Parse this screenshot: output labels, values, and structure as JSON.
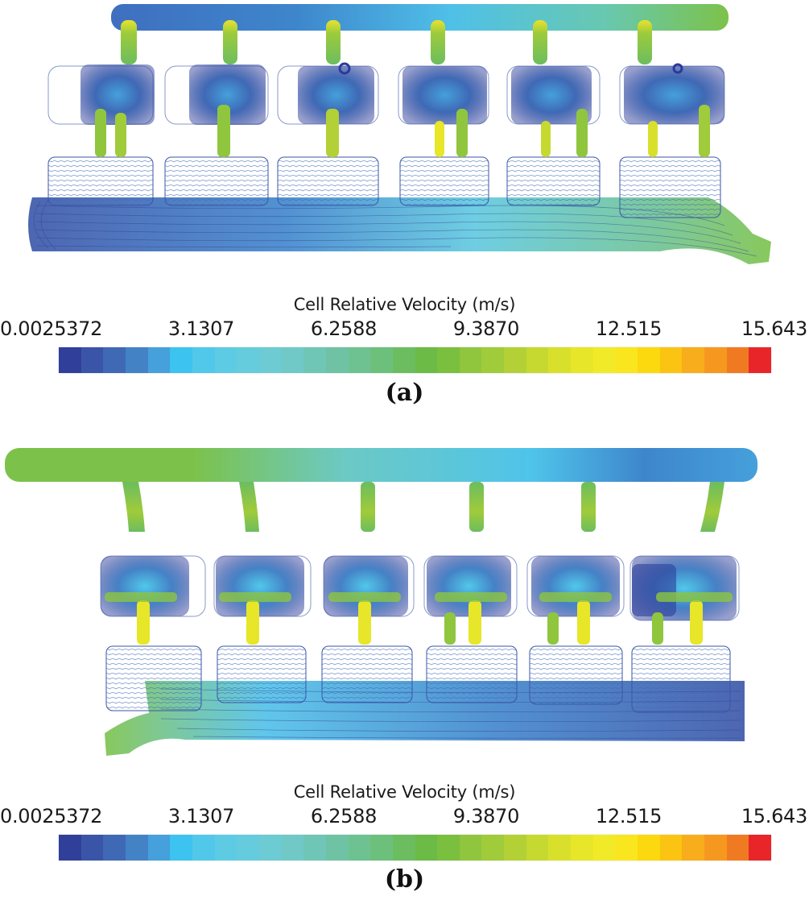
{
  "figure": {
    "panels": [
      {
        "id": "a",
        "caption": "(a)",
        "colorbar": {
          "title": "Cell Relative Velocity (m/s)",
          "tick_labels": [
            "0.0025372",
            "3.1307",
            "6.2588",
            "9.3870",
            "12.515",
            "15.643"
          ]
        }
      },
      {
        "id": "b",
        "caption": "(b)",
        "colorbar": {
          "title": "Cell Relative Velocity (m/s)",
          "tick_labels": [
            "0.0025372",
            "3.1307",
            "6.2588",
            "9.3870",
            "12.515",
            "15.643"
          ]
        }
      }
    ],
    "colormap": [
      "#2f3f9a",
      "#3a55a8",
      "#3f69b5",
      "#4482c6",
      "#45a0db",
      "#3cc3ef",
      "#51c8ea",
      "#5ecbe4",
      "#65ccdd",
      "#6ccbd3",
      "#70c9c7",
      "#70c6b6",
      "#6fc3a4",
      "#6ec291",
      "#6cc07b",
      "#6cbd5f",
      "#6bbb46",
      "#7bbf3f",
      "#8fc63e",
      "#a0cb3a",
      "#b3d136",
      "#c6d930",
      "#d8e02b",
      "#e7e628",
      "#f1ea28",
      "#fae61e",
      "#fcd80e",
      "#fbc412",
      "#f8ad1c",
      "#f6981f",
      "#f07a22",
      "#e8262a"
    ],
    "accent_colors": {
      "stream_dark": "#2b3a9a",
      "stream_mid": "#3f7fcc",
      "stream_light": "#45b8e8",
      "jet_green": "#8cc63f",
      "jet_yellow": "#f2e831",
      "manifold_green": "#7cc24a",
      "manifold_cyan": "#5ec8df"
    }
  },
  "chart_data": [
    {
      "type": "heatmap",
      "title": "Cell Relative Velocity (m/s)",
      "panel": "(a)",
      "colorbar_range": [
        0.0025372,
        15.643
      ],
      "colorbar_ticks": [
        0.0025372,
        3.1307,
        6.2588,
        9.387,
        12.515,
        15.643
      ],
      "colorbar_segments": 32,
      "description": "Streamlines through six cylinder ports: top intake manifold (blue-cyan to green toward right), runners green-yellow jets, cylinders with dark-blue recirculation, bottom exhaust manifold flowing right and exiting lower-right (green)."
    },
    {
      "type": "heatmap",
      "title": "Cell Relative Velocity (m/s)",
      "panel": "(b)",
      "colorbar_range": [
        0.0025372,
        15.643
      ],
      "colorbar_ticks": [
        0.0025372,
        3.1307,
        6.2588,
        9.387,
        12.515,
        15.643
      ],
      "colorbar_segments": 32,
      "description": "Streamlines through six cylinder ports: top manifold green on left fading to blue at right, runners green, cylinders with blue recirculation and yellow jets, bottom manifold exiting lower-left (green)."
    }
  ]
}
